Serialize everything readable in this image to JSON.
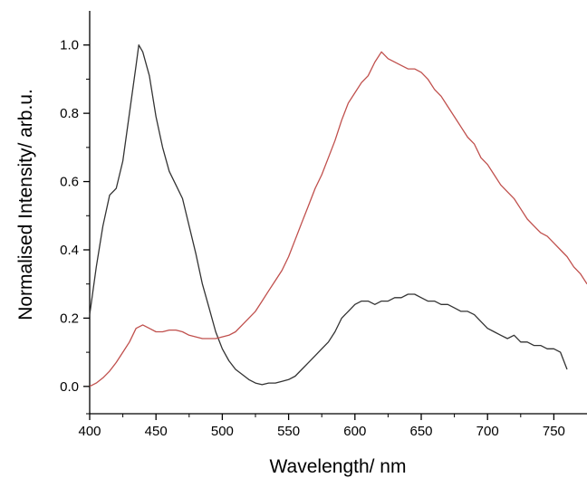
{
  "chart_data": {
    "type": "line",
    "xlabel": "Wavelength/ nm",
    "ylabel": "Normalised Intensity/ arb.u.",
    "xlim": [
      400,
      775
    ],
    "ylim": [
      -0.08,
      1.1
    ],
    "xticks": [
      400,
      450,
      500,
      550,
      600,
      650,
      700,
      750
    ],
    "yticks": [
      0.0,
      0.2,
      0.4,
      0.6,
      0.8,
      1.0
    ],
    "xtick_labels": [
      "400",
      "450",
      "500",
      "550",
      "600",
      "650",
      "700",
      "750"
    ],
    "ytick_labels": [
      "0.0",
      "0.2",
      "0.4",
      "0.6",
      "0.8",
      "1.0"
    ],
    "grid": false,
    "series": [
      {
        "color": "#333333",
        "x": [
          400,
          405,
          410,
          415,
          420,
          425,
          430,
          435,
          437,
          440,
          445,
          450,
          455,
          460,
          465,
          470,
          475,
          480,
          485,
          490,
          495,
          500,
          505,
          510,
          515,
          520,
          525,
          530,
          535,
          540,
          545,
          550,
          555,
          560,
          565,
          570,
          575,
          580,
          585,
          590,
          595,
          600,
          605,
          610,
          615,
          620,
          625,
          630,
          635,
          640,
          645,
          650,
          655,
          660,
          665,
          670,
          675,
          680,
          685,
          690,
          695,
          700,
          705,
          710,
          715,
          720,
          725,
          730,
          735,
          740,
          745,
          750,
          755,
          760
        ],
        "values": [
          0.21,
          0.35,
          0.47,
          0.56,
          0.58,
          0.66,
          0.8,
          0.94,
          1.0,
          0.98,
          0.91,
          0.79,
          0.7,
          0.63,
          0.59,
          0.55,
          0.47,
          0.39,
          0.3,
          0.23,
          0.16,
          0.11,
          0.075,
          0.05,
          0.035,
          0.02,
          0.01,
          0.005,
          0.01,
          0.01,
          0.015,
          0.02,
          0.03,
          0.05,
          0.07,
          0.09,
          0.11,
          0.13,
          0.16,
          0.2,
          0.22,
          0.24,
          0.25,
          0.25,
          0.24,
          0.25,
          0.25,
          0.26,
          0.26,
          0.27,
          0.27,
          0.26,
          0.25,
          0.25,
          0.24,
          0.24,
          0.23,
          0.22,
          0.22,
          0.21,
          0.19,
          0.17,
          0.16,
          0.15,
          0.14,
          0.15,
          0.13,
          0.13,
          0.12,
          0.12,
          0.11,
          0.11,
          0.1,
          0.05
        ]
      },
      {
        "color": "#c0504d",
        "x": [
          400,
          405,
          410,
          415,
          420,
          425,
          430,
          435,
          440,
          445,
          450,
          455,
          460,
          465,
          470,
          475,
          480,
          485,
          490,
          495,
          500,
          505,
          510,
          515,
          520,
          525,
          530,
          535,
          540,
          545,
          550,
          555,
          560,
          565,
          570,
          575,
          580,
          585,
          590,
          595,
          600,
          605,
          610,
          615,
          620,
          625,
          630,
          635,
          640,
          645,
          650,
          655,
          660,
          665,
          670,
          675,
          680,
          685,
          690,
          695,
          700,
          705,
          710,
          715,
          720,
          725,
          730,
          735,
          740,
          745,
          750,
          755,
          760,
          765,
          770,
          775
        ],
        "values": [
          0.0,
          0.01,
          0.025,
          0.045,
          0.07,
          0.1,
          0.13,
          0.17,
          0.18,
          0.17,
          0.16,
          0.16,
          0.165,
          0.165,
          0.16,
          0.15,
          0.145,
          0.14,
          0.14,
          0.14,
          0.145,
          0.15,
          0.16,
          0.18,
          0.2,
          0.22,
          0.25,
          0.28,
          0.31,
          0.34,
          0.38,
          0.43,
          0.48,
          0.53,
          0.58,
          0.62,
          0.67,
          0.72,
          0.78,
          0.83,
          0.86,
          0.89,
          0.91,
          0.95,
          0.98,
          0.96,
          0.95,
          0.94,
          0.93,
          0.93,
          0.92,
          0.9,
          0.87,
          0.85,
          0.82,
          0.79,
          0.76,
          0.73,
          0.71,
          0.67,
          0.65,
          0.62,
          0.59,
          0.57,
          0.55,
          0.52,
          0.49,
          0.47,
          0.45,
          0.44,
          0.42,
          0.4,
          0.38,
          0.35,
          0.33,
          0.3
        ]
      }
    ]
  }
}
